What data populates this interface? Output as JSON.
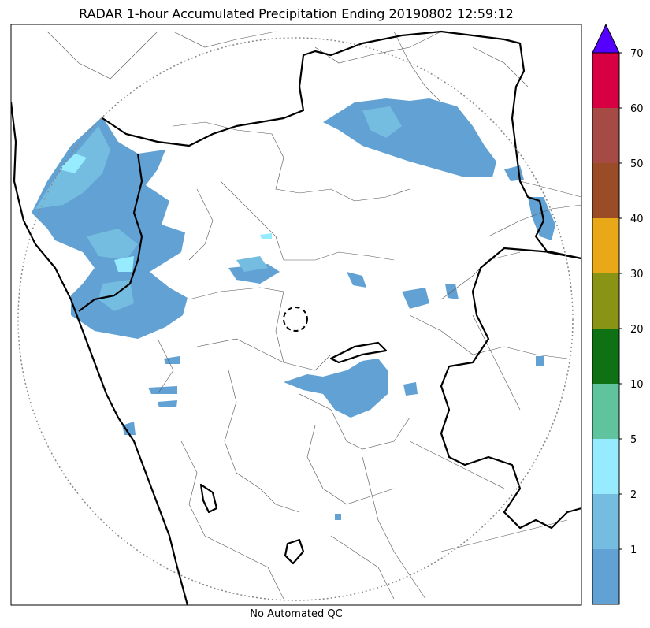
{
  "title": "RADAR 1-hour Accumulated Precipitation Ending 20190802 12:59:12",
  "caption": "No Automated QC",
  "colorbar": {
    "extend_color": "#5500ff",
    "bins": [
      {
        "label": "",
        "color": "#62a1d3"
      },
      {
        "label": "1",
        "color": "#75bde0"
      },
      {
        "label": "2",
        "color": "#96ebff"
      },
      {
        "label": "5",
        "color": "#5fc49d"
      },
      {
        "label": "10",
        "color": "#0e7215"
      },
      {
        "label": "20",
        "color": "#8a9414"
      },
      {
        "label": "30",
        "color": "#e8a818"
      },
      {
        "label": "40",
        "color": "#9a4c26"
      },
      {
        "label": "50",
        "color": "#a54a45"
      },
      {
        "label": "60",
        "color": "#d70043"
      },
      {
        "label": "70",
        "color": ""
      }
    ]
  }
}
